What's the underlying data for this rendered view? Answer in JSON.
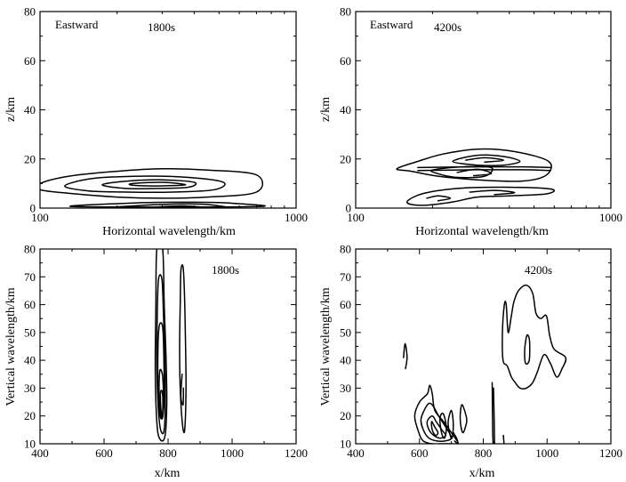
{
  "chart_data": [
    {
      "type": "contour",
      "xscale": "log",
      "xlabel": "Horizontal wavelength/km",
      "ylabel": "z/km",
      "xlim": [
        100,
        1000
      ],
      "ylim": [
        0,
        80
      ],
      "xticks": [
        "100",
        "1000"
      ],
      "yticks": [
        "0",
        "20",
        "40",
        "60",
        "80"
      ],
      "annotations": [
        "Eastward",
        "1800s"
      ],
      "contours": [
        [
          [
            100,
            10
          ],
          [
            130,
            13
          ],
          [
            200,
            15
          ],
          [
            300,
            16
          ],
          [
            450,
            15.5
          ],
          [
            700,
            13.5
          ],
          [
            700,
            6.5
          ],
          [
            450,
            4.5
          ],
          [
            300,
            4
          ],
          [
            200,
            4.5
          ],
          [
            130,
            6
          ],
          [
            100,
            7.5
          ]
        ],
        [
          [
            125,
            9
          ],
          [
            160,
            12
          ],
          [
            250,
            13
          ],
          [
            380,
            12.5
          ],
          [
            520,
            10.5
          ],
          [
            480,
            7.5
          ],
          [
            330,
            6.5
          ],
          [
            220,
            6.5
          ],
          [
            155,
            7
          ]
        ],
        [
          [
            175,
            9.5
          ],
          [
            220,
            11
          ],
          [
            300,
            11.5
          ],
          [
            400,
            10.5
          ],
          [
            380,
            8.5
          ],
          [
            290,
            8
          ],
          [
            215,
            8
          ]
        ],
        [
          [
            230,
            10
          ],
          [
            300,
            10.5
          ],
          [
            370,
            9.5
          ],
          [
            290,
            9
          ],
          [
            230,
            9.3
          ]
        ],
        [
          [
            135,
            0.6
          ],
          [
            250,
            2.2
          ],
          [
            400,
            2.4
          ],
          [
            560,
            2
          ],
          [
            700,
            0.6
          ]
        ],
        [
          [
            200,
            0.5
          ],
          [
            300,
            1.5
          ],
          [
            430,
            1.6
          ],
          [
            530,
            0.5
          ]
        ],
        [
          [
            270,
            0.3
          ],
          [
            360,
            0.9
          ],
          [
            440,
            0.3
          ]
        ]
      ]
    },
    {
      "type": "contour",
      "xscale": "log",
      "xlabel": "Horizontal wavelength/km",
      "ylabel": "z/km",
      "xlim": [
        100,
        1000
      ],
      "ylim": [
        0,
        80
      ],
      "xticks": [
        "100",
        "1000"
      ],
      "yticks": [
        "0",
        "20",
        "40",
        "60",
        "80"
      ],
      "annotations": [
        "Eastward",
        "4200s"
      ],
      "contours": [
        [
          [
            145,
            16
          ],
          [
            175,
            19
          ],
          [
            220,
            22
          ],
          [
            300,
            24
          ],
          [
            420,
            23
          ],
          [
            570,
            19
          ],
          [
            560,
            13.5
          ],
          [
            450,
            11
          ],
          [
            300,
            11.5
          ],
          [
            210,
            13
          ],
          [
            165,
            15
          ]
        ],
        [
          [
            240,
            19
          ],
          [
            300,
            21.5
          ],
          [
            380,
            21
          ],
          [
            440,
            19
          ],
          [
            380,
            17.5
          ],
          [
            300,
            17.5
          ]
        ],
        [
          [
            270,
            19.5
          ],
          [
            320,
            20.5
          ],
          [
            380,
            19.5
          ],
          [
            320,
            18.7
          ]
        ],
        [
          [
            175,
            16.5
          ],
          [
            300,
            16.8
          ],
          [
            450,
            16.8
          ],
          [
            580,
            16.5
          ]
        ],
        [
          [
            175,
            15.3
          ],
          [
            300,
            15.6
          ],
          [
            450,
            15.6
          ],
          [
            580,
            15.3
          ]
        ],
        [
          [
            200,
            15.5
          ],
          [
            260,
            16.8
          ],
          [
            340,
            16.5
          ],
          [
            320,
            13
          ],
          [
            250,
            12.5
          ],
          [
            210,
            14
          ]
        ],
        [
          [
            250,
            14.5
          ],
          [
            300,
            15.8
          ],
          [
            340,
            14
          ],
          [
            290,
            13.2
          ]
        ],
        [
          [
            160,
            3
          ],
          [
            185,
            6
          ],
          [
            250,
            8
          ],
          [
            380,
            8.5
          ],
          [
            580,
            7.8
          ],
          [
            560,
            5.8
          ],
          [
            400,
            5
          ],
          [
            300,
            4.5
          ],
          [
            240,
            2.5
          ],
          [
            190,
            1.2
          ],
          [
            165,
            1.5
          ]
        ],
        [
          [
            190,
            4
          ],
          [
            210,
            5
          ],
          [
            235,
            4
          ],
          [
            210,
            3
          ]
        ],
        [
          [
            280,
            6.5
          ],
          [
            350,
            7.2
          ],
          [
            420,
            6.3
          ],
          [
            350,
            5.5
          ]
        ]
      ]
    },
    {
      "type": "contour",
      "xlabel": "x/km",
      "ylabel": "Vertical wavelength/km",
      "xlim": [
        400,
        1200
      ],
      "ylim": [
        10,
        80
      ],
      "xticks": [
        "400",
        "600",
        "800",
        "1000",
        "1200"
      ],
      "yticks": [
        "10",
        "20",
        "30",
        "40",
        "50",
        "60",
        "70",
        "80"
      ],
      "annotations": [
        "1800s"
      ],
      "contours": [
        [
          [
            765,
            80
          ],
          [
            762,
            60
          ],
          [
            760,
            40
          ],
          [
            762,
            25
          ],
          [
            768,
            14
          ],
          [
            782,
            11
          ],
          [
            792,
            14
          ],
          [
            796,
            25
          ],
          [
            794,
            40
          ],
          [
            788,
            60
          ],
          [
            783,
            80
          ]
        ],
        [
          [
            770,
            69
          ],
          [
            766,
            55
          ],
          [
            765,
            40
          ],
          [
            768,
            26
          ],
          [
            775,
            16
          ],
          [
            786,
            14
          ],
          [
            791,
            22
          ],
          [
            790,
            40
          ],
          [
            786,
            55
          ],
          [
            781,
            69
          ]
        ],
        [
          [
            772,
            52
          ],
          [
            768,
            40
          ],
          [
            770,
            26
          ],
          [
            778,
            19
          ],
          [
            787,
            24
          ],
          [
            787,
            40
          ],
          [
            783,
            52
          ]
        ],
        [
          [
            774,
            36
          ],
          [
            772,
            28
          ],
          [
            776,
            22
          ],
          [
            782,
            19
          ],
          [
            786,
            24
          ],
          [
            784,
            33
          ],
          [
            780,
            36
          ]
        ],
        [
          [
            776,
            28
          ],
          [
            778,
            22
          ],
          [
            782,
            20
          ],
          [
            784,
            25
          ],
          [
            781,
            29
          ]
        ],
        [
          [
            840,
            72
          ],
          [
            838,
            60
          ],
          [
            836,
            45
          ],
          [
            838,
            30
          ],
          [
            845,
            17
          ],
          [
            852,
            15
          ],
          [
            856,
            30
          ],
          [
            854,
            50
          ],
          [
            850,
            68
          ],
          [
            846,
            74
          ]
        ],
        [
          [
            844,
            35
          ],
          [
            840,
            27
          ],
          [
            847,
            24
          ],
          [
            848,
            30
          ]
        ]
      ]
    },
    {
      "type": "contour",
      "xlabel": "x/km",
      "ylabel": "Vertical wavelength/km",
      "xlim": [
        400,
        1200
      ],
      "ylim": [
        10,
        80
      ],
      "xticks": [
        "400",
        "600",
        "800",
        "1000",
        "1200"
      ],
      "yticks": [
        "10",
        "20",
        "30",
        "40",
        "50",
        "60",
        "70",
        "80"
      ],
      "annotations": [
        "4200s"
      ],
      "contours": [
        [
          [
            875,
            38
          ],
          [
            862,
            40
          ],
          [
            860,
            50
          ],
          [
            866,
            60
          ],
          [
            872,
            60
          ],
          [
            878,
            50
          ],
          [
            888,
            56
          ],
          [
            896,
            61
          ],
          [
            910,
            65
          ],
          [
            935,
            67
          ],
          [
            955,
            64
          ],
          [
            965,
            57
          ],
          [
            980,
            55
          ],
          [
            998,
            56
          ],
          [
            1008,
            49
          ],
          [
            1022,
            44
          ],
          [
            1058,
            41
          ],
          [
            1047,
            37
          ],
          [
            1030,
            34
          ],
          [
            1010,
            39
          ],
          [
            990,
            42
          ],
          [
            970,
            36
          ],
          [
            955,
            32
          ],
          [
            935,
            30
          ],
          [
            915,
            30
          ],
          [
            900,
            32
          ],
          [
            888,
            34
          ]
        ],
        [
          [
            930,
            44
          ],
          [
            937,
            49
          ],
          [
            945,
            47
          ],
          [
            944,
            40
          ],
          [
            932,
            39
          ]
        ],
        [
          [
            550,
            41
          ],
          [
            555,
            46
          ],
          [
            561,
            41
          ],
          [
            556,
            37
          ]
        ],
        [
          [
            828,
            32
          ],
          [
            830,
            12
          ],
          [
            835,
            10
          ],
          [
            832,
            30
          ]
        ],
        [
          [
            863,
            13
          ],
          [
            865,
            10
          ]
        ],
        [
          [
            585,
            20
          ],
          [
            600,
            25
          ],
          [
            625,
            28
          ],
          [
            632,
            31
          ],
          [
            640,
            28
          ],
          [
            648,
            22
          ],
          [
            675,
            18
          ],
          [
            700,
            14
          ],
          [
            722,
            10
          ],
          [
            700,
            10
          ],
          [
            670,
            10
          ],
          [
            640,
            10
          ],
          [
            612,
            11
          ],
          [
            598,
            14
          ]
        ],
        [
          [
            605,
            19
          ],
          [
            625,
            24
          ],
          [
            640,
            24
          ],
          [
            660,
            20
          ],
          [
            688,
            15
          ],
          [
            700,
            12
          ],
          [
            680,
            11
          ],
          [
            655,
            11
          ],
          [
            630,
            12
          ],
          [
            612,
            15
          ]
        ],
        [
          [
            624,
            18
          ],
          [
            640,
            20
          ],
          [
            652,
            18
          ],
          [
            670,
            15
          ],
          [
            682,
            13
          ],
          [
            665,
            12
          ],
          [
            645,
            13
          ],
          [
            630,
            15
          ]
        ],
        [
          [
            638,
            18
          ],
          [
            648,
            16
          ],
          [
            658,
            14
          ],
          [
            650,
            13
          ],
          [
            640,
            15
          ]
        ],
        [
          [
            664,
            19
          ],
          [
            672,
            21
          ],
          [
            680,
            19
          ],
          [
            684,
            15
          ],
          [
            678,
            12
          ],
          [
            669,
            14
          ]
        ],
        [
          [
            690,
            18
          ],
          [
            700,
            22
          ],
          [
            706,
            17
          ],
          [
            702,
            12
          ],
          [
            694,
            14
          ]
        ],
        [
          [
            728,
            21
          ],
          [
            734,
            24
          ],
          [
            748,
            19
          ],
          [
            744,
            16
          ],
          [
            736,
            14
          ],
          [
            729,
            17
          ]
        ],
        [
          [
            706,
            14
          ],
          [
            716,
            12
          ],
          [
            720,
            10
          ],
          [
            710,
            11
          ]
        ]
      ]
    }
  ]
}
